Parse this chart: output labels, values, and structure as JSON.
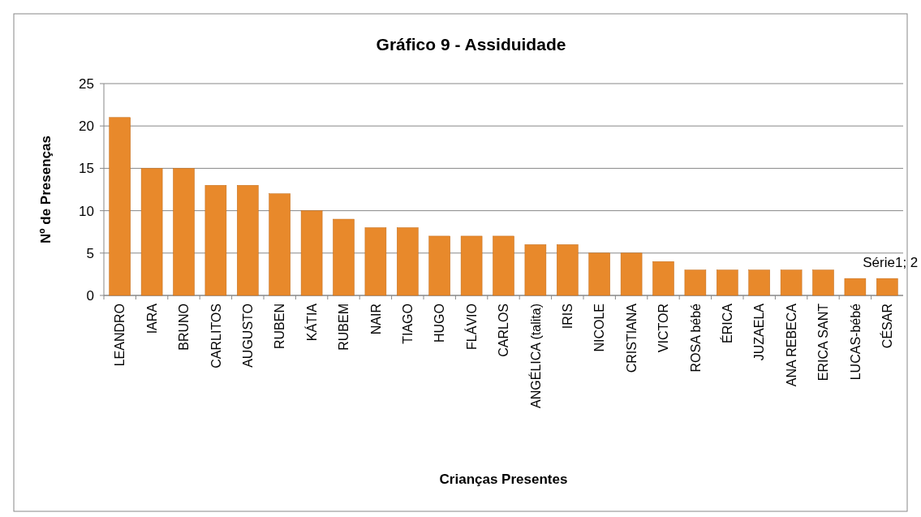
{
  "chart_data": {
    "type": "bar",
    "title": "Gráfico 9 - Assiduidade",
    "xlabel": "Crianças Presentes",
    "ylabel": "Nº de Presenças",
    "categories": [
      "LEANDRO",
      "IARA",
      "BRUNO",
      "CARLITOS",
      "AUGUSTO",
      "RUBEN",
      "KÁTIA",
      "RUBEM",
      "NAIR",
      "TIAGO",
      "HUGO",
      "FLÁVIO",
      "CARLOS",
      "ANGÉLICA (talita)",
      "IRIS",
      "NICOLE",
      "CRISTIANA",
      "VICTOR",
      "ROSA bébé",
      "ÉRICA",
      "JUZAELA",
      "ANA REBECA",
      "ERICA SANT",
      "LUCAS-bébé",
      "CÉSAR"
    ],
    "values": [
      21,
      15,
      15,
      13,
      13,
      12,
      10,
      9,
      8,
      8,
      7,
      7,
      7,
      6,
      6,
      5,
      5,
      4,
      3,
      3,
      3,
      3,
      3,
      2,
      2
    ],
    "color": "#e8892b",
    "ylim": [
      0,
      25
    ],
    "yticks": [
      0,
      5,
      10,
      15,
      20,
      25
    ],
    "grid": "y",
    "annotations": [
      {
        "text": "Série1; 2",
        "x": "CÉSAR",
        "y": 2
      }
    ]
  }
}
